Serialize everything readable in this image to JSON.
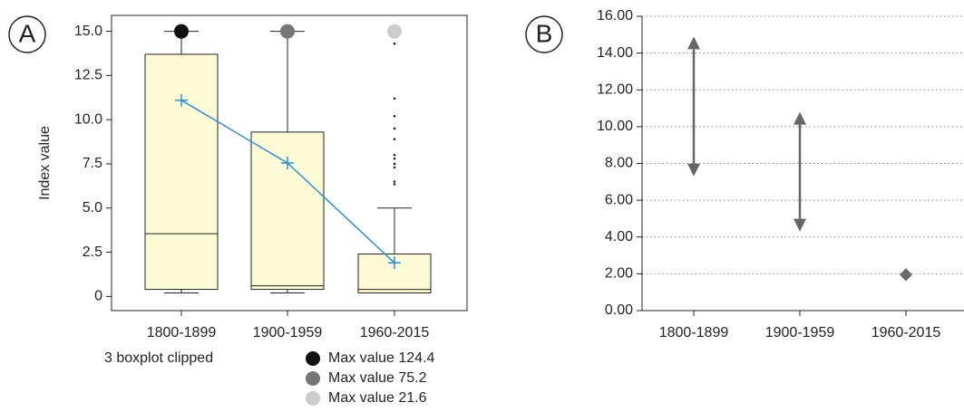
{
  "chart_data": [
    {
      "type": "box",
      "panel_label": "A",
      "ylabel": "Index value",
      "categories": [
        "1800-1899",
        "1900-1959",
        "1960-2015"
      ],
      "whisker_low": [
        0.2,
        0.2,
        0.2
      ],
      "q1": [
        0.4,
        0.4,
        0.2
      ],
      "median": [
        3.55,
        0.6,
        0.4
      ],
      "q3": [
        13.7,
        9.3,
        2.4
      ],
      "whisker_high": [
        15,
        15,
        5.0
      ],
      "mean": [
        11.1,
        7.55,
        1.9
      ],
      "outliers": [
        [],
        [],
        [
          14.3,
          11.2,
          10.2,
          9.5,
          8.9,
          8.0,
          7.8,
          7.5,
          7.3,
          6.5,
          6.35
        ]
      ],
      "clipped": [
        true,
        true,
        false
      ],
      "clipped_note": "3 boxplot clipped",
      "clipped_max": {
        "values": [
          124.4,
          75.2,
          21.6
        ],
        "value_labels": [
          "Max value 124.4",
          "Max value 75.2",
          "Max value 21.6"
        ],
        "at": [
          15,
          15,
          15
        ],
        "colors": [
          "#111111",
          "#777777",
          "#cccccc"
        ]
      },
      "box_color": "#fdfad6",
      "mean_color": "#2a8fd8",
      "ylim": [
        -0.8,
        15.9
      ],
      "yticks": [
        0,
        2.5,
        {
          "value": 5,
          "label": "5.0"
        },
        {
          "value": 7.5,
          "label": "7.5"
        },
        {
          "value": 10,
          "label": "10.0"
        },
        {
          "value": 12.5,
          "label": "12.5"
        },
        {
          "value": 15,
          "label": "15.0"
        }
      ]
    },
    {
      "type": "range",
      "panel_label": "B",
      "categories": [
        "1800-1899",
        "1900-1959",
        "1960-2015"
      ],
      "low": [
        7.3,
        4.3,
        1.6
      ],
      "high": [
        14.9,
        10.8,
        2.3
      ],
      "color": "#666666",
      "grid": true,
      "ylim": [
        0,
        16
      ],
      "yticks": [
        {
          "value": 0,
          "label": "0.00"
        },
        {
          "value": 2,
          "label": "2.00"
        },
        {
          "value": 4,
          "label": "4.00"
        },
        {
          "value": 6,
          "label": "6.00"
        },
        {
          "value": 8,
          "label": "8.00"
        },
        {
          "value": 10,
          "label": "10.00"
        },
        {
          "value": 12,
          "label": "12.00"
        },
        {
          "value": 14,
          "label": "14.00"
        },
        {
          "value": 16,
          "label": "16.00"
        }
      ]
    }
  ]
}
